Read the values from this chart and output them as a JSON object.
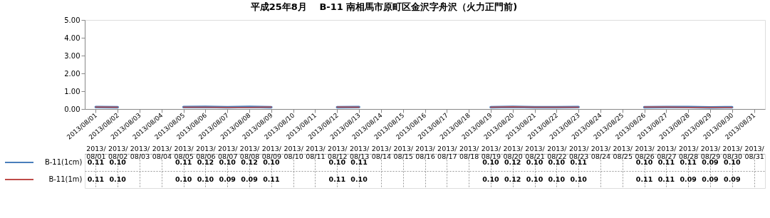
{
  "chart_data": {
    "type": "line",
    "title": "平成25年8月　 B-11 南相馬市原町区金沢字舟沢（火力正門前)",
    "categories": [
      "2013/08/01",
      "2013/08/02",
      "2013/08/03",
      "2013/08/04",
      "2013/08/05",
      "2013/08/06",
      "2013/08/07",
      "2013/08/08",
      "2013/08/09",
      "2013/08/10",
      "2013/08/11",
      "2013/08/12",
      "2013/08/13",
      "2013/08/14",
      "2013/08/15",
      "2013/08/16",
      "2013/08/17",
      "2013/08/18",
      "2013/08/19",
      "2013/08/20",
      "2013/08/21",
      "2013/08/22",
      "2013/08/23",
      "2013/08/24",
      "2013/08/25",
      "2013/08/26",
      "2013/08/27",
      "2013/08/28",
      "2013/08/29",
      "2013/08/30",
      "2013/08/31"
    ],
    "series": [
      {
        "name": "B-11(1cm)",
        "color": "#4a7ebb",
        "values": [
          0.11,
          0.1,
          null,
          null,
          0.11,
          0.12,
          0.1,
          0.12,
          0.1,
          null,
          null,
          0.1,
          0.11,
          null,
          null,
          null,
          null,
          null,
          0.1,
          0.12,
          0.1,
          0.1,
          0.11,
          null,
          null,
          0.1,
          0.11,
          0.11,
          0.09,
          0.1,
          null
        ],
        "value_labels": [
          "0.11",
          "0.10",
          null,
          null,
          "0.11",
          "0.12",
          "0.10",
          "0.12",
          "0.10",
          null,
          null,
          "0.10",
          "0.11",
          null,
          null,
          null,
          null,
          null,
          "0.10",
          "0.12",
          "0.10",
          "0.10",
          "0.11",
          null,
          null,
          "0.10",
          "0.11",
          "0.11",
          "0.09",
          "0.10",
          null
        ]
      },
      {
        "name": "B-11(1m)",
        "color": "#be4b48",
        "values": [
          0.11,
          0.1,
          null,
          null,
          0.1,
          0.1,
          0.09,
          0.09,
          0.11,
          null,
          null,
          0.11,
          0.1,
          null,
          null,
          null,
          null,
          null,
          0.1,
          0.12,
          0.1,
          0.1,
          0.1,
          null,
          null,
          0.11,
          0.11,
          0.09,
          0.09,
          0.09,
          null
        ],
        "value_labels": [
          "0.11",
          "0.10",
          null,
          null,
          "0.10",
          "0.10",
          "0.09",
          "0.09",
          "0.11",
          null,
          null,
          "0.11",
          "0.10",
          null,
          null,
          null,
          null,
          null,
          "0.10",
          "0.12",
          "0.10",
          "0.10",
          "0.10",
          null,
          null,
          "0.11",
          "0.11",
          "0.09",
          "0.09",
          "0.09",
          null
        ]
      }
    ],
    "ylim": [
      0,
      5
    ],
    "yticks": [
      {
        "value": 0,
        "label": "0.00"
      },
      {
        "value": 1,
        "label": "1.00"
      },
      {
        "value": 2,
        "label": "2.00"
      },
      {
        "value": 3,
        "label": "3.00"
      },
      {
        "value": 4,
        "label": "4.00"
      },
      {
        "value": 5,
        "label": "5.00"
      }
    ],
    "legend": "bottom left",
    "marker": "none",
    "line_style": "solid"
  }
}
